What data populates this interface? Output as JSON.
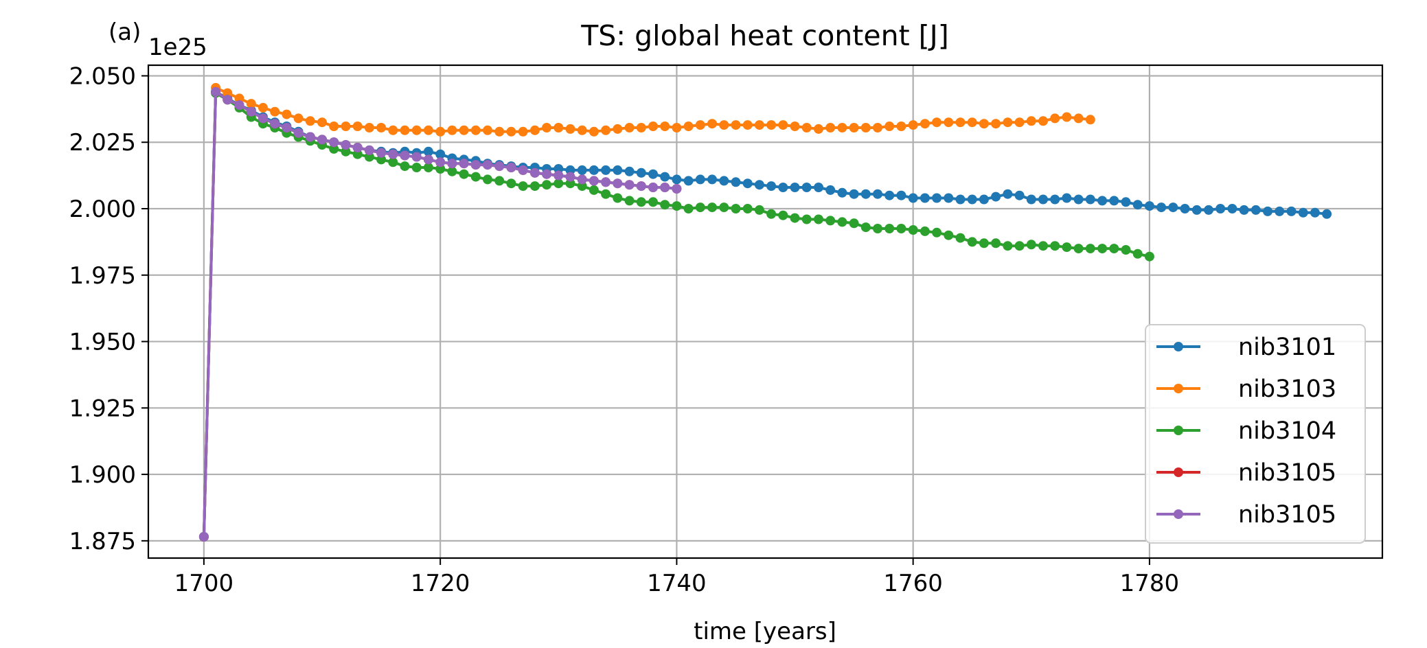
{
  "chart_data": {
    "type": "line",
    "panel_label": "(a)",
    "title": "TS: global heat content [J]",
    "xlabel": "time [years]",
    "ylabel": "",
    "y_multiplier": "1e25",
    "xlim": [
      1695.3,
      1799.7
    ],
    "ylim": [
      1.8685,
      2.054
    ],
    "xticks": [
      1700,
      1720,
      1740,
      1760,
      1780
    ],
    "xtick_labels": [
      "1700",
      "1720",
      "1740",
      "1760",
      "1780"
    ],
    "yticks": [
      1.875,
      1.9,
      1.925,
      1.95,
      1.975,
      2.0,
      2.025,
      2.05
    ],
    "ytick_labels": [
      "1.875",
      "1.900",
      "1.925",
      "1.950",
      "1.975",
      "2.000",
      "2.025",
      "2.050"
    ],
    "grid": true,
    "legend_position": "lower-right",
    "series": [
      {
        "name": "nib3101",
        "color": "#1f77b4",
        "x": [
          1700,
          1701,
          1702,
          1703,
          1704,
          1705,
          1706,
          1707,
          1708,
          1709,
          1710,
          1711,
          1712,
          1713,
          1714,
          1715,
          1716,
          1717,
          1718,
          1719,
          1720,
          1721,
          1722,
          1723,
          1724,
          1725,
          1726,
          1727,
          1728,
          1729,
          1730,
          1731,
          1732,
          1733,
          1734,
          1735,
          1736,
          1737,
          1738,
          1739,
          1740,
          1741,
          1742,
          1743,
          1744,
          1745,
          1746,
          1747,
          1748,
          1749,
          1750,
          1751,
          1752,
          1753,
          1754,
          1755,
          1756,
          1757,
          1758,
          1759,
          1760,
          1761,
          1762,
          1763,
          1764,
          1765,
          1766,
          1767,
          1768,
          1769,
          1770,
          1771,
          1772,
          1773,
          1774,
          1775,
          1776,
          1777,
          1778,
          1779,
          1780,
          1781,
          1782,
          1783,
          1784,
          1785,
          1786,
          1787,
          1788,
          1789,
          1790,
          1791,
          1792,
          1793,
          1794,
          1795
        ],
        "y": [
          1.8765,
          2.044,
          2.0415,
          2.039,
          2.037,
          2.0345,
          2.0325,
          2.031,
          2.029,
          2.027,
          2.026,
          2.025,
          2.024,
          2.023,
          2.022,
          2.0215,
          2.021,
          2.0215,
          2.021,
          2.0215,
          2.0205,
          2.019,
          2.0185,
          2.018,
          2.017,
          2.0165,
          2.016,
          2.0155,
          2.0155,
          2.015,
          2.015,
          2.0145,
          2.0145,
          2.0145,
          2.0145,
          2.0145,
          2.014,
          2.0135,
          2.013,
          2.012,
          2.011,
          2.0105,
          2.011,
          2.011,
          2.0105,
          2.01,
          2.0095,
          2.009,
          2.0085,
          2.008,
          2.008,
          2.008,
          2.008,
          2.007,
          2.006,
          2.0055,
          2.0055,
          2.0055,
          2.005,
          2.005,
          2.004,
          2.004,
          2.004,
          2.004,
          2.0035,
          2.0035,
          2.0035,
          2.0045,
          2.0055,
          2.005,
          2.0035,
          2.0035,
          2.0035,
          2.004,
          2.0035,
          2.0035,
          2.003,
          2.003,
          2.0025,
          2.0015,
          2.001,
          2.0005,
          2.0005,
          2.0,
          1.9995,
          1.9995,
          2.0,
          2.0,
          1.9995,
          1.9995,
          1.999,
          1.999,
          1.999,
          1.9985,
          1.9985,
          1.998
        ]
      },
      {
        "name": "nib3103",
        "color": "#ff7f0e",
        "x": [
          1701,
          1702,
          1703,
          1704,
          1705,
          1706,
          1707,
          1708,
          1709,
          1710,
          1711,
          1712,
          1713,
          1714,
          1715,
          1716,
          1717,
          1718,
          1719,
          1720,
          1721,
          1722,
          1723,
          1724,
          1725,
          1726,
          1727,
          1728,
          1729,
          1730,
          1731,
          1732,
          1733,
          1734,
          1735,
          1736,
          1737,
          1738,
          1739,
          1740,
          1741,
          1742,
          1743,
          1744,
          1745,
          1746,
          1747,
          1748,
          1749,
          1750,
          1751,
          1752,
          1753,
          1754,
          1755,
          1756,
          1757,
          1758,
          1759,
          1760,
          1761,
          1762,
          1763,
          1764,
          1765,
          1766,
          1767,
          1768,
          1769,
          1770,
          1771,
          1772,
          1773,
          1774,
          1775
        ],
        "y": [
          2.0455,
          2.0435,
          2.0415,
          2.0395,
          2.038,
          2.0365,
          2.0355,
          2.034,
          2.033,
          2.0325,
          2.031,
          2.031,
          2.031,
          2.0305,
          2.0305,
          2.0295,
          2.0295,
          2.0295,
          2.0295,
          2.029,
          2.0295,
          2.0295,
          2.0295,
          2.0295,
          2.029,
          2.029,
          2.029,
          2.0295,
          2.0305,
          2.0305,
          2.03,
          2.0295,
          2.029,
          2.0295,
          2.03,
          2.0305,
          2.0305,
          2.031,
          2.031,
          2.0305,
          2.031,
          2.0315,
          2.032,
          2.0315,
          2.0315,
          2.0315,
          2.0315,
          2.0315,
          2.0315,
          2.031,
          2.0305,
          2.03,
          2.0305,
          2.0305,
          2.0305,
          2.0305,
          2.0305,
          2.031,
          2.031,
          2.0315,
          2.032,
          2.0325,
          2.0325,
          2.0325,
          2.0325,
          2.032,
          2.032,
          2.0325,
          2.0325,
          2.033,
          2.033,
          2.034,
          2.0345,
          2.034,
          2.0335
        ]
      },
      {
        "name": "nib3104",
        "color": "#2ca02c",
        "x": [
          1700,
          1701,
          1702,
          1703,
          1704,
          1705,
          1706,
          1707,
          1708,
          1709,
          1710,
          1711,
          1712,
          1713,
          1714,
          1715,
          1716,
          1717,
          1718,
          1719,
          1720,
          1721,
          1722,
          1723,
          1724,
          1725,
          1726,
          1727,
          1728,
          1729,
          1730,
          1731,
          1732,
          1733,
          1734,
          1735,
          1736,
          1737,
          1738,
          1739,
          1740,
          1741,
          1742,
          1743,
          1744,
          1745,
          1746,
          1747,
          1748,
          1749,
          1750,
          1751,
          1752,
          1753,
          1754,
          1755,
          1756,
          1757,
          1758,
          1759,
          1760,
          1761,
          1762,
          1763,
          1764,
          1765,
          1766,
          1767,
          1768,
          1769,
          1770,
          1771,
          1772,
          1773,
          1774,
          1775,
          1776,
          1777,
          1778,
          1779,
          1780
        ],
        "y": [
          1.8765,
          2.0435,
          2.041,
          2.038,
          2.0345,
          2.032,
          2.0305,
          2.0285,
          2.027,
          2.0255,
          2.024,
          2.0225,
          2.0215,
          2.0205,
          2.0195,
          2.0185,
          2.0175,
          2.016,
          2.0155,
          2.0155,
          2.015,
          2.014,
          2.013,
          2.012,
          2.011,
          2.0105,
          2.0095,
          2.0085,
          2.0085,
          2.009,
          2.0095,
          2.0095,
          2.0085,
          2.007,
          2.0055,
          2.004,
          2.003,
          2.0025,
          2.0025,
          2.0015,
          2.001,
          2.0,
          2.0005,
          2.0005,
          2.0005,
          2.0,
          2.0,
          1.9995,
          1.998,
          1.9975,
          1.9965,
          1.996,
          1.996,
          1.9955,
          1.995,
          1.9945,
          1.993,
          1.9925,
          1.9925,
          1.9925,
          1.992,
          1.9915,
          1.991,
          1.99,
          1.989,
          1.9875,
          1.987,
          1.987,
          1.986,
          1.986,
          1.9865,
          1.986,
          1.986,
          1.9855,
          1.985,
          1.985,
          1.985,
          1.985,
          1.9845,
          1.983,
          1.982
        ]
      },
      {
        "name": "nib3105",
        "color": "#d62728",
        "x": [
          1700,
          1701,
          1702,
          1703,
          1704,
          1705,
          1706,
          1707,
          1708,
          1709,
          1710,
          1711,
          1712,
          1713,
          1714,
          1715,
          1716,
          1717,
          1718,
          1719,
          1720,
          1721,
          1722,
          1723,
          1724,
          1725,
          1726,
          1727,
          1728,
          1729,
          1730,
          1731,
          1732,
          1733,
          1734,
          1735,
          1736,
          1737,
          1738,
          1739,
          1740
        ],
        "y": [
          1.8765,
          2.044,
          2.041,
          2.039,
          2.0365,
          2.034,
          2.032,
          2.0305,
          2.0285,
          2.027,
          2.026,
          2.025,
          2.024,
          2.023,
          2.022,
          2.021,
          2.0205,
          2.02,
          2.0195,
          2.0185,
          2.0175,
          2.017,
          2.017,
          2.0165,
          2.0165,
          2.016,
          2.0155,
          2.0145,
          2.0135,
          2.013,
          2.0125,
          2.012,
          2.011,
          2.0105,
          2.01,
          2.0095,
          2.009,
          2.0085,
          2.008,
          2.008,
          2.0075
        ]
      },
      {
        "name": "nib3105",
        "color": "#9467bd",
        "x": [
          1700,
          1701,
          1702,
          1703,
          1704,
          1705,
          1706,
          1707,
          1708,
          1709,
          1710,
          1711,
          1712,
          1713,
          1714,
          1715,
          1716,
          1717,
          1718,
          1719,
          1720,
          1721,
          1722,
          1723,
          1724,
          1725,
          1726,
          1727,
          1728,
          1729,
          1730,
          1731,
          1732,
          1733,
          1734,
          1735,
          1736,
          1737,
          1738,
          1739,
          1740
        ],
        "y": [
          1.8765,
          2.044,
          2.041,
          2.039,
          2.0365,
          2.034,
          2.032,
          2.0305,
          2.0285,
          2.027,
          2.026,
          2.025,
          2.024,
          2.023,
          2.022,
          2.021,
          2.0205,
          2.02,
          2.0195,
          2.0185,
          2.0175,
          2.017,
          2.017,
          2.0165,
          2.0165,
          2.016,
          2.0155,
          2.0145,
          2.0135,
          2.013,
          2.0125,
          2.012,
          2.011,
          2.0105,
          2.01,
          2.0095,
          2.009,
          2.0085,
          2.008,
          2.008,
          2.0075
        ]
      }
    ]
  }
}
